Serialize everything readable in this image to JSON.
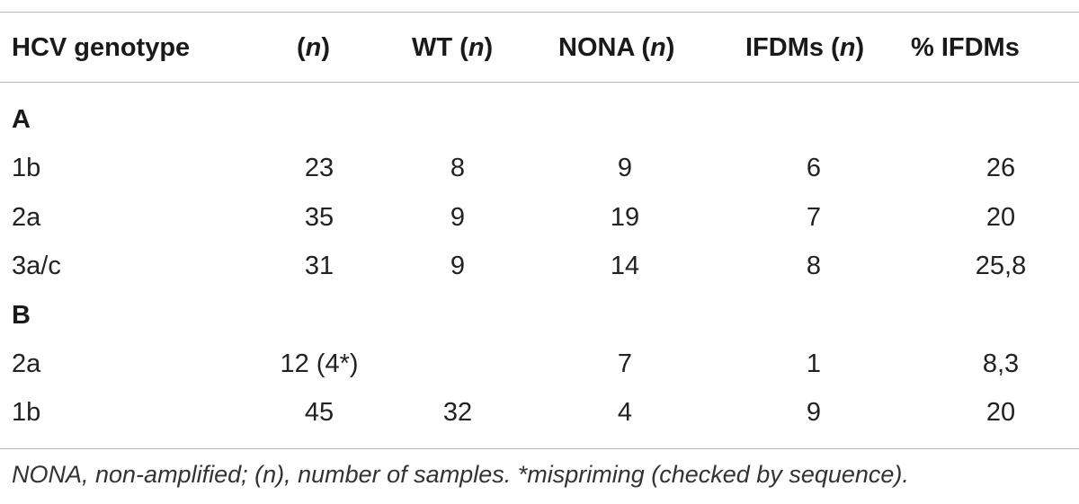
{
  "table": {
    "headers": [
      {
        "pre": "HCV genotype",
        "it": "",
        "post": ""
      },
      {
        "pre": "(",
        "it": "n",
        "post": ")"
      },
      {
        "pre": "WT (",
        "it": "n",
        "post": ")"
      },
      {
        "pre": "NONA (",
        "it": "n",
        "post": ")"
      },
      {
        "pre": "IFDMs (",
        "it": "n",
        "post": ")"
      },
      {
        "pre": "% IFDMs",
        "it": "",
        "post": ""
      }
    ],
    "groups": [
      {
        "label": "A",
        "rows": [
          [
            "1b",
            "23",
            "8",
            "9",
            "6",
            "26"
          ],
          [
            "2a",
            "35",
            "9",
            "19",
            "7",
            "20"
          ],
          [
            "3a/c",
            "31",
            "9",
            "14",
            "8",
            "25,8"
          ]
        ]
      },
      {
        "label": "B",
        "rows": [
          [
            "2a",
            "12 (4*)",
            "",
            "7",
            "1",
            "8,3"
          ],
          [
            "1b",
            "45",
            "32",
            "4",
            "9",
            "20"
          ]
        ]
      }
    ],
    "footnote": "NONA, non-amplified; (n), number of samples. *mispriming (checked by sequence)."
  }
}
